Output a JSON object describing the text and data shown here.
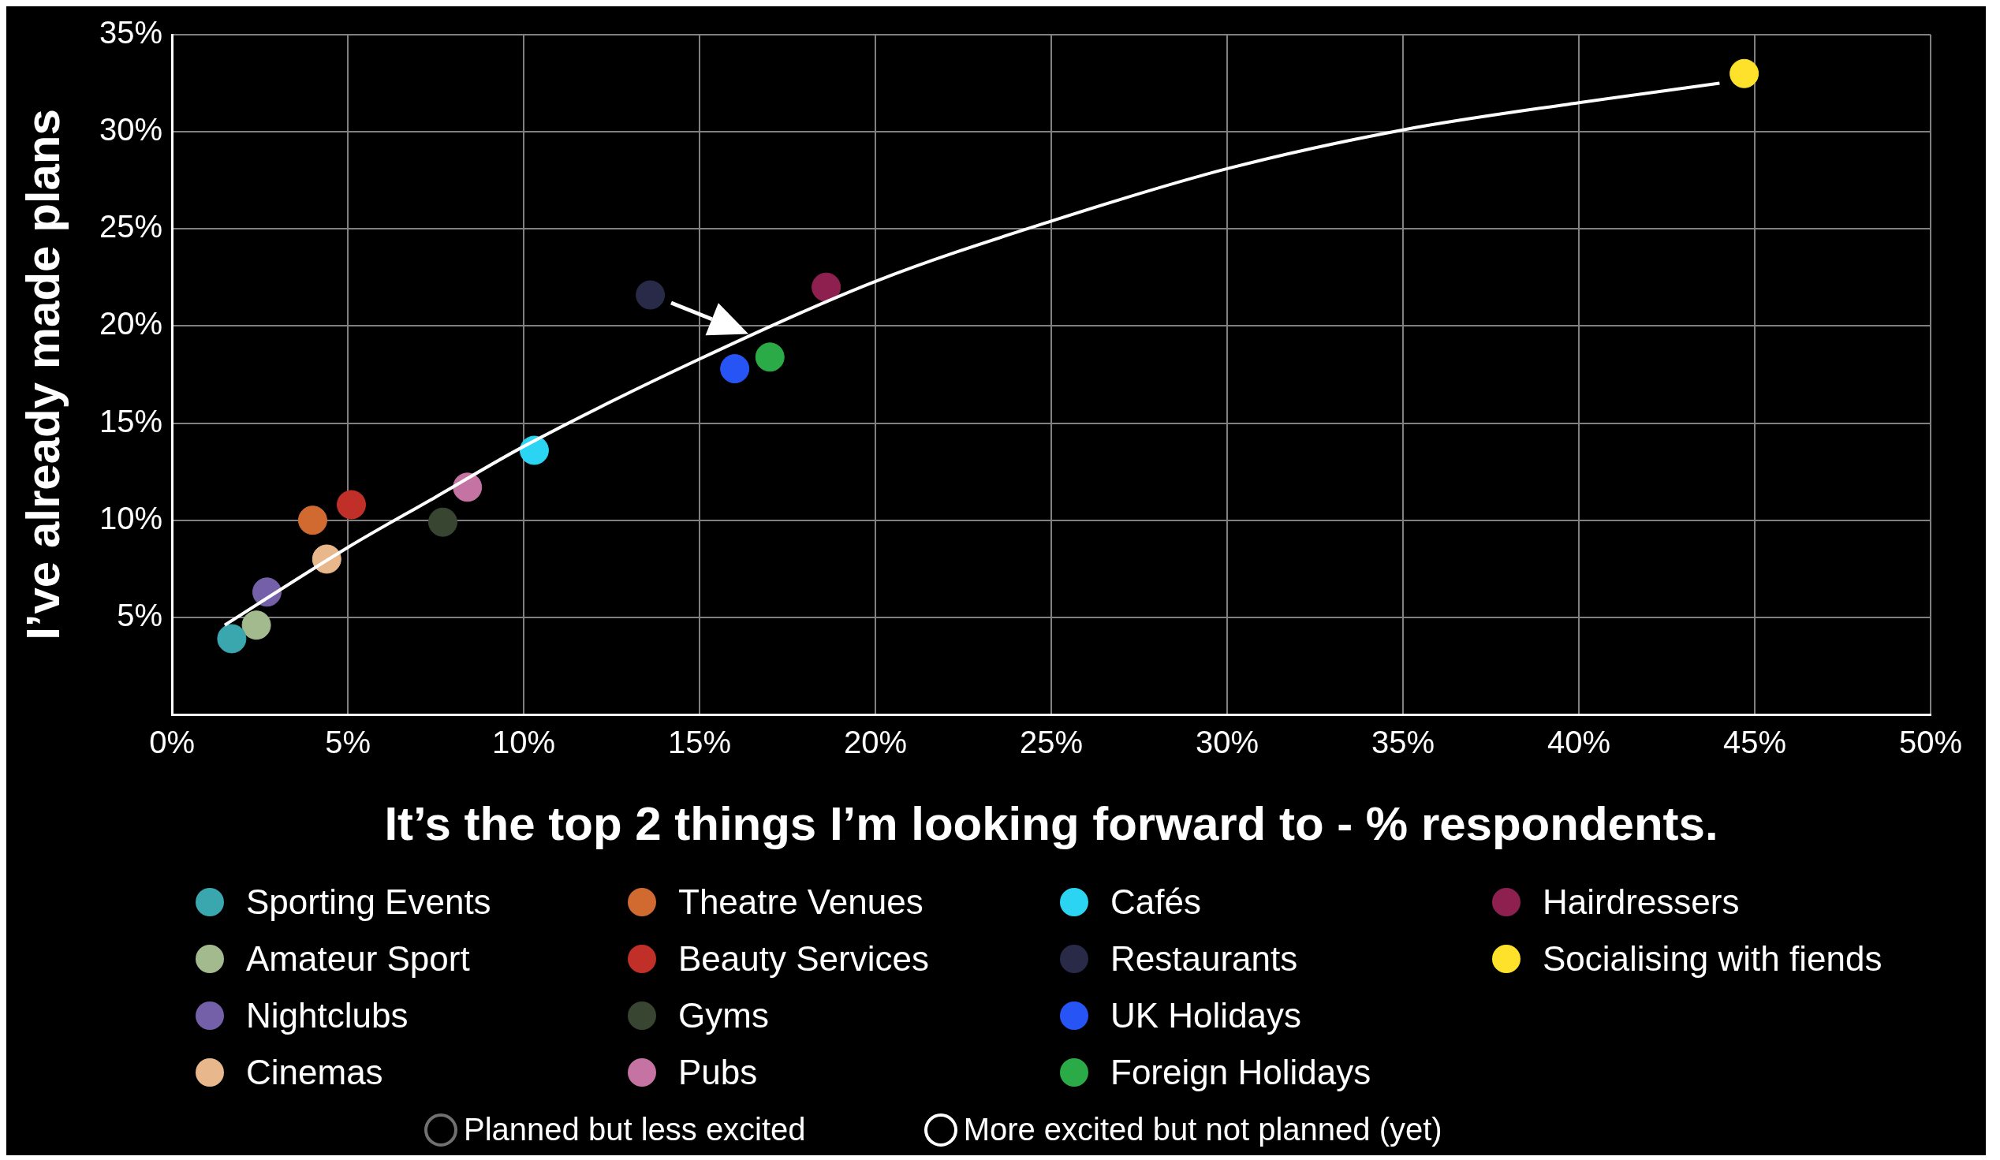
{
  "chart_data": {
    "type": "scatter",
    "xlabel": "It’s the top 2 things I’m looking forward to - % respondents.",
    "ylabel": "I’ve already made plans",
    "xlim": [
      0,
      50
    ],
    "xticks": [
      {
        "value": 0,
        "label": "0%"
      },
      {
        "value": 5,
        "label": "5%"
      },
      {
        "value": 10,
        "label": "10%"
      },
      {
        "value": 15,
        "label": "15%"
      },
      {
        "value": 20,
        "label": "20%"
      },
      {
        "value": 25,
        "label": "25%"
      },
      {
        "value": 30,
        "label": "30%"
      },
      {
        "value": 35,
        "label": "35%"
      },
      {
        "value": 40,
        "label": "40%"
      },
      {
        "value": 45,
        "label": "45%"
      },
      {
        "value": 50,
        "label": "50%"
      }
    ],
    "ylim": [
      0,
      35
    ],
    "yticks": [
      {
        "value": 0,
        "label": null
      },
      {
        "value": 5,
        "label": "5%"
      },
      {
        "value": 10,
        "label": "10%"
      },
      {
        "value": 15,
        "label": "15%"
      },
      {
        "value": 20,
        "label": "20%"
      },
      {
        "value": 25,
        "label": "25%"
      },
      {
        "value": 30,
        "label": "30%"
      },
      {
        "value": 35,
        "label": "35%"
      }
    ],
    "grid": true,
    "legend": "bottom",
    "marker": "circle",
    "series": [
      {
        "type": "line",
        "marker": "none",
        "color": "#ffffff",
        "x": [
          1.5,
          5,
          7.5,
          10,
          15,
          20,
          25,
          30,
          35,
          40,
          44
        ],
        "values": [
          4.6,
          8.6,
          11.2,
          13.8,
          18.3,
          22.3,
          25.4,
          28.1,
          30.1,
          31.5,
          32.5
        ]
      },
      {
        "name": "Sporting Events",
        "color": "#3aa6ae",
        "x": [
          1.7
        ],
        "values": [
          3.9
        ]
      },
      {
        "name": "Amateur Sport",
        "color": "#a3ba8f",
        "x": [
          2.4
        ],
        "values": [
          4.6
        ]
      },
      {
        "name": "Nightclubs",
        "color": "#7460a8",
        "x": [
          2.7
        ],
        "values": [
          6.3
        ]
      },
      {
        "name": "Cinemas",
        "color": "#e8b78c",
        "x": [
          4.4
        ],
        "values": [
          8
        ]
      },
      {
        "name": "Theatre Venues",
        "color": "#d06a30",
        "x": [
          4
        ],
        "values": [
          10
        ]
      },
      {
        "name": "Beauty Services",
        "color": "#c03028",
        "x": [
          5.1
        ],
        "values": [
          10.8
        ]
      },
      {
        "name": "Gyms",
        "color": "#384530",
        "x": [
          7.7
        ],
        "values": [
          9.9
        ]
      },
      {
        "name": "Pubs",
        "color": "#c473a3",
        "x": [
          8.4
        ],
        "values": [
          11.7
        ]
      },
      {
        "name": "Cafés",
        "color": "#2ad4f2",
        "x": [
          10.3
        ],
        "values": [
          13.6
        ]
      },
      {
        "name": "Restaurants",
        "color": "#282a48",
        "x": [
          13.6
        ],
        "values": [
          21.6
        ]
      },
      {
        "name": "UK Holidays",
        "color": "#2755f5",
        "x": [
          16
        ],
        "values": [
          17.8
        ]
      },
      {
        "name": "Foreign Holidays",
        "color": "#2aab48",
        "x": [
          17
        ],
        "values": [
          18.4
        ]
      },
      {
        "name": "Hairdressers",
        "color": "#8e2050",
        "x": [
          18.6
        ],
        "values": [
          22
        ]
      },
      {
        "name": "Socialising with fiends",
        "color": "#fde12a",
        "x": [
          44.7
        ],
        "values": [
          33
        ]
      }
    ],
    "annotations": [
      "Planned but less excited",
      "More excited but not planned (yet)"
    ]
  }
}
